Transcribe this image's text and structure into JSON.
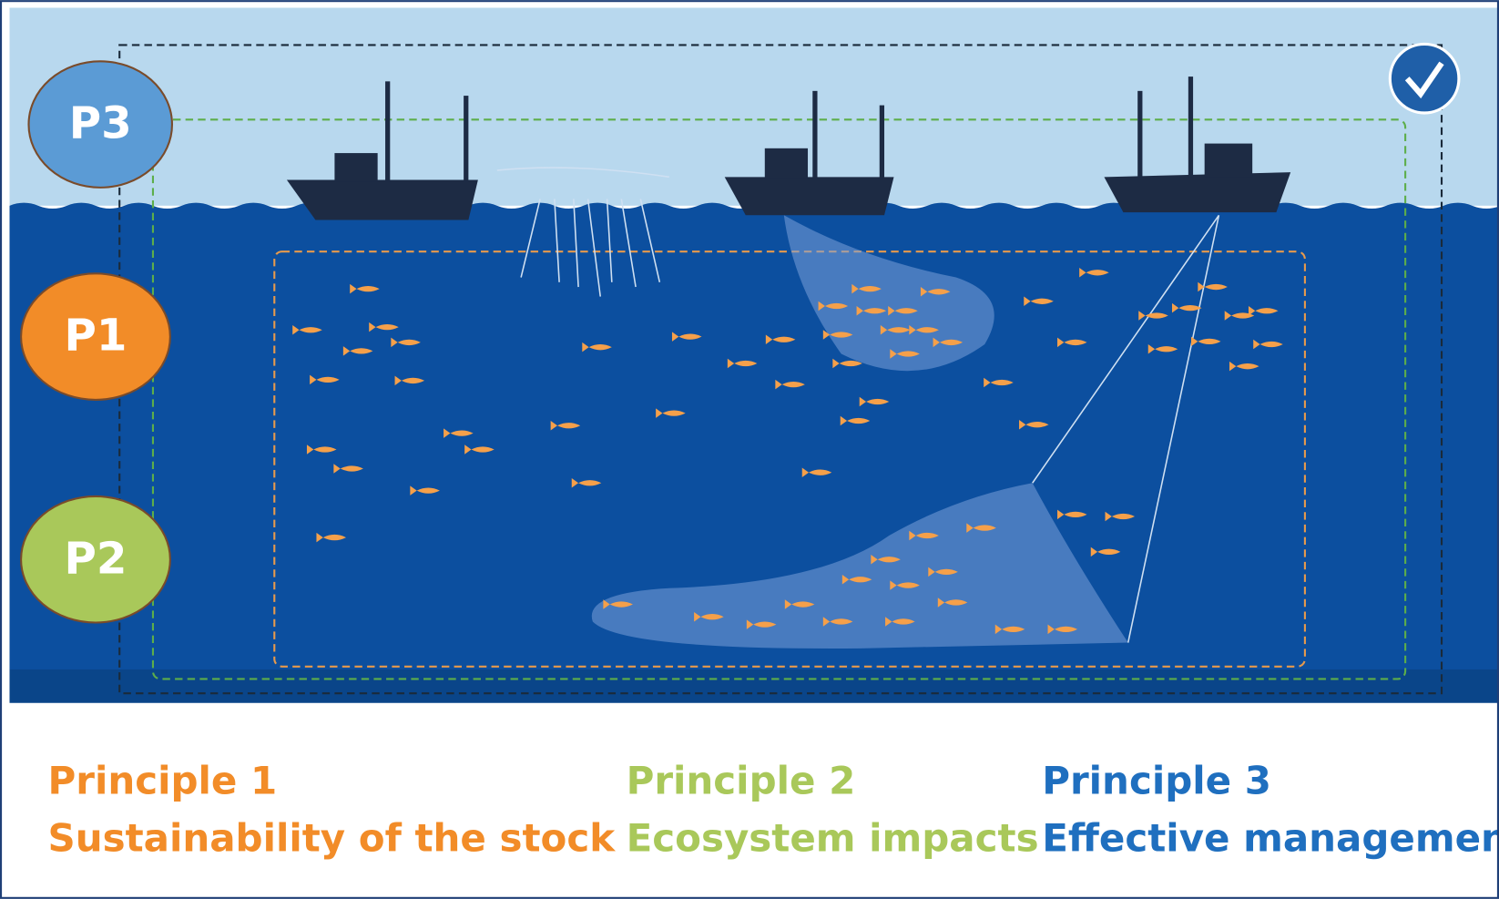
{
  "badges": [
    {
      "label": "P3"
    },
    {
      "label": "P1"
    },
    {
      "label": "P2"
    }
  ],
  "principles": [
    {
      "title": "Principle 1",
      "subtitle": "Sustainability of the stock"
    },
    {
      "title": "Principle 2",
      "subtitle": "Ecosystem impacts"
    },
    {
      "title": "Principle 3",
      "subtitle": "Effective management"
    }
  ]
}
